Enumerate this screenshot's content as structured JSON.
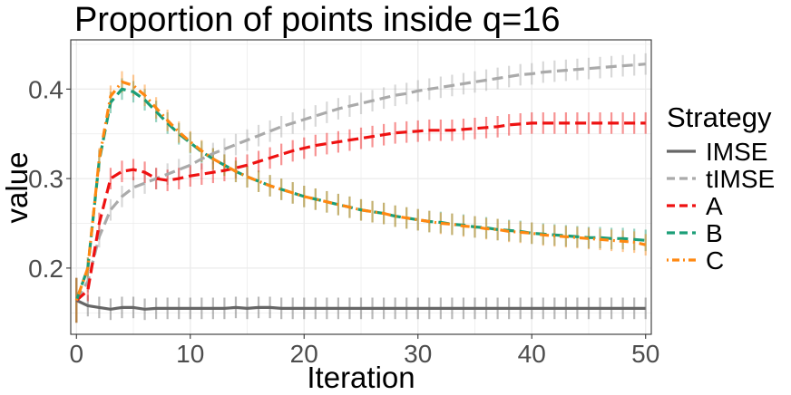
{
  "chart_data": {
    "type": "line",
    "title": "Proportion of points inside q=16",
    "xlabel": "Iteration",
    "ylabel": "value",
    "xlim": [
      -0.5,
      50.5
    ],
    "ylim": [
      0.126,
      0.455
    ],
    "x_ticks": [
      0,
      10,
      20,
      30,
      40,
      50
    ],
    "x_tick_labels": [
      "0",
      "10",
      "20",
      "30",
      "40",
      "50"
    ],
    "y_ticks": [
      0.2,
      0.3,
      0.4
    ],
    "y_tick_labels": [
      "0.2",
      "0.3",
      "0.4"
    ],
    "grid": true,
    "legend_title": "Strategy",
    "legend_position": "right",
    "error_half_width": 0.012,
    "series": [
      {
        "name": "IMSE",
        "color": "#666666",
        "dash": "solid",
        "values": [
          0.164,
          0.158,
          0.156,
          0.154,
          0.156,
          0.156,
          0.154,
          0.155,
          0.155,
          0.155,
          0.155,
          0.155,
          0.155,
          0.155,
          0.156,
          0.155,
          0.156,
          0.156,
          0.155,
          0.155,
          0.155,
          0.155,
          0.155,
          0.155,
          0.155,
          0.155,
          0.155,
          0.155,
          0.155,
          0.155,
          0.155,
          0.155,
          0.155,
          0.155,
          0.155,
          0.155,
          0.155,
          0.155,
          0.155,
          0.155,
          0.155,
          0.155,
          0.155,
          0.155,
          0.155,
          0.155,
          0.155,
          0.155,
          0.155,
          0.155,
          0.155
        ]
      },
      {
        "name": "tIMSE",
        "color": "#aaaaaa",
        "dash": "dashed",
        "values": [
          0.164,
          0.185,
          0.235,
          0.265,
          0.28,
          0.29,
          0.295,
          0.3,
          0.305,
          0.31,
          0.315,
          0.322,
          0.328,
          0.333,
          0.338,
          0.343,
          0.348,
          0.353,
          0.358,
          0.362,
          0.366,
          0.37,
          0.374,
          0.378,
          0.381,
          0.384,
          0.387,
          0.39,
          0.393,
          0.395,
          0.398,
          0.4,
          0.402,
          0.404,
          0.406,
          0.408,
          0.41,
          0.412,
          0.414,
          0.416,
          0.417,
          0.419,
          0.42,
          0.421,
          0.422,
          0.423,
          0.424,
          0.425,
          0.426,
          0.427,
          0.428
        ]
      },
      {
        "name": "A",
        "color": "#ee1111",
        "dash": "dashed",
        "values": [
          0.164,
          0.175,
          0.25,
          0.3,
          0.308,
          0.31,
          0.307,
          0.3,
          0.298,
          0.3,
          0.303,
          0.305,
          0.307,
          0.309,
          0.312,
          0.315,
          0.319,
          0.323,
          0.327,
          0.331,
          0.334,
          0.337,
          0.339,
          0.341,
          0.343,
          0.345,
          0.347,
          0.349,
          0.351,
          0.352,
          0.353,
          0.354,
          0.354,
          0.354,
          0.355,
          0.356,
          0.357,
          0.358,
          0.36,
          0.361,
          0.362,
          0.362,
          0.362,
          0.362,
          0.362,
          0.362,
          0.362,
          0.362,
          0.362,
          0.362,
          0.362
        ]
      },
      {
        "name": "B",
        "color": "#1b9e77",
        "dash": "dashed",
        "values": [
          0.164,
          0.2,
          0.32,
          0.385,
          0.4,
          0.397,
          0.388,
          0.375,
          0.362,
          0.35,
          0.34,
          0.33,
          0.322,
          0.315,
          0.308,
          0.302,
          0.297,
          0.292,
          0.288,
          0.284,
          0.28,
          0.277,
          0.274,
          0.271,
          0.268,
          0.265,
          0.263,
          0.261,
          0.258,
          0.256,
          0.254,
          0.252,
          0.251,
          0.249,
          0.248,
          0.246,
          0.245,
          0.243,
          0.242,
          0.241,
          0.239,
          0.238,
          0.237,
          0.236,
          0.235,
          0.234,
          0.234,
          0.233,
          0.233,
          0.232,
          0.231
        ]
      },
      {
        "name": "C",
        "color": "#ff8811",
        "dash": "dotdash",
        "values": [
          0.164,
          0.2,
          0.322,
          0.392,
          0.408,
          0.404,
          0.393,
          0.379,
          0.365,
          0.352,
          0.341,
          0.331,
          0.322,
          0.315,
          0.308,
          0.302,
          0.297,
          0.292,
          0.288,
          0.284,
          0.28,
          0.277,
          0.274,
          0.271,
          0.268,
          0.265,
          0.263,
          0.261,
          0.258,
          0.256,
          0.254,
          0.252,
          0.25,
          0.249,
          0.247,
          0.246,
          0.244,
          0.243,
          0.241,
          0.24,
          0.239,
          0.237,
          0.236,
          0.235,
          0.234,
          0.233,
          0.232,
          0.231,
          0.23,
          0.229,
          0.226
        ]
      }
    ]
  }
}
